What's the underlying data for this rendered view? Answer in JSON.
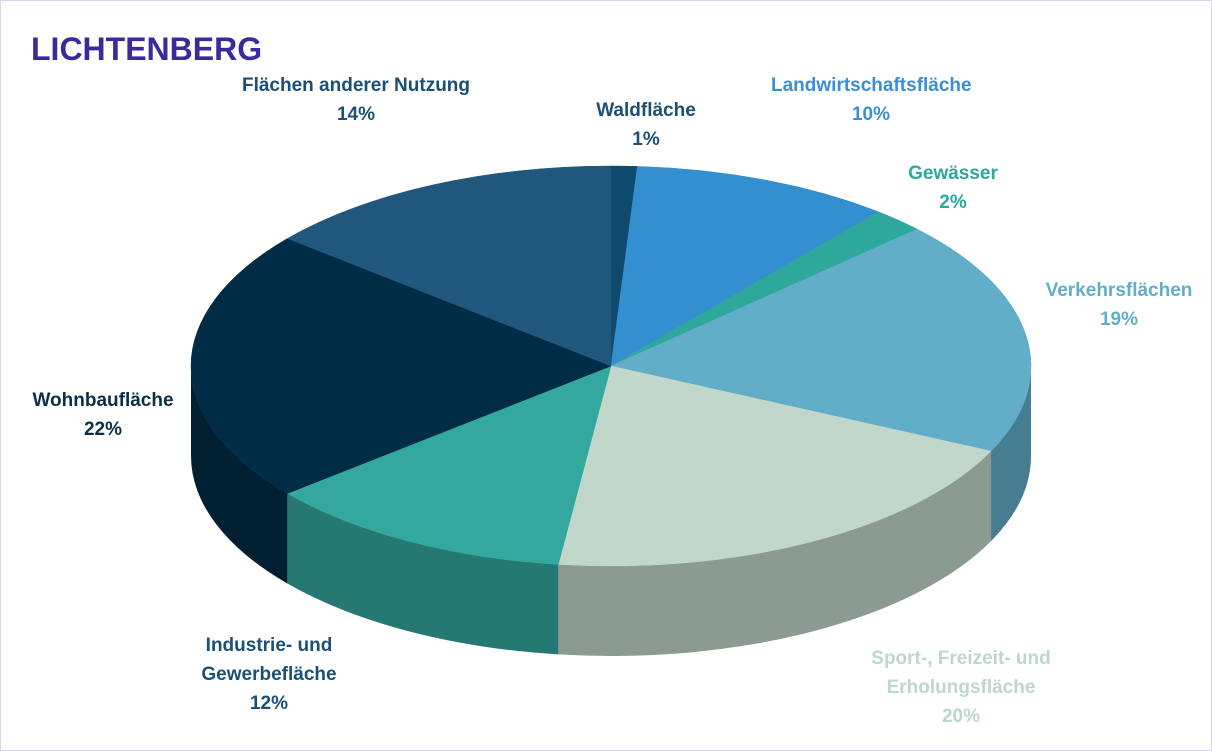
{
  "chart_data": {
    "type": "pie",
    "title": "LICHTENBERG",
    "categories": [
      "Waldfläche",
      "Landwirtschaftsfläche",
      "Gewässer",
      "Verkehrsflächen",
      "Sport-, Freizeit- und Erholungsfläche",
      "Industrie- und Gewerbefläche",
      "Wohnbaufläche",
      "Flächen anderer Nutzung"
    ],
    "values": [
      1,
      10,
      2,
      19,
      20,
      12,
      22,
      14
    ],
    "value_labels": [
      "1%",
      "10%",
      "2%",
      "19%",
      "20%",
      "12%",
      "22%",
      "14%"
    ],
    "colors": [
      "#0e4a6e",
      "#348fd0",
      "#2ea89a",
      "#62aec8",
      "#c1d7cb",
      "#33a89f",
      "#002d45",
      "#1f577d"
    ],
    "label_colors": [
      "#1b4f75",
      "#3b8fd0",
      "#2ea89a",
      "#62aec8",
      "#bcd8cb",
      "#1b4f75",
      "#0a2f47",
      "#1b4f75"
    ]
  }
}
